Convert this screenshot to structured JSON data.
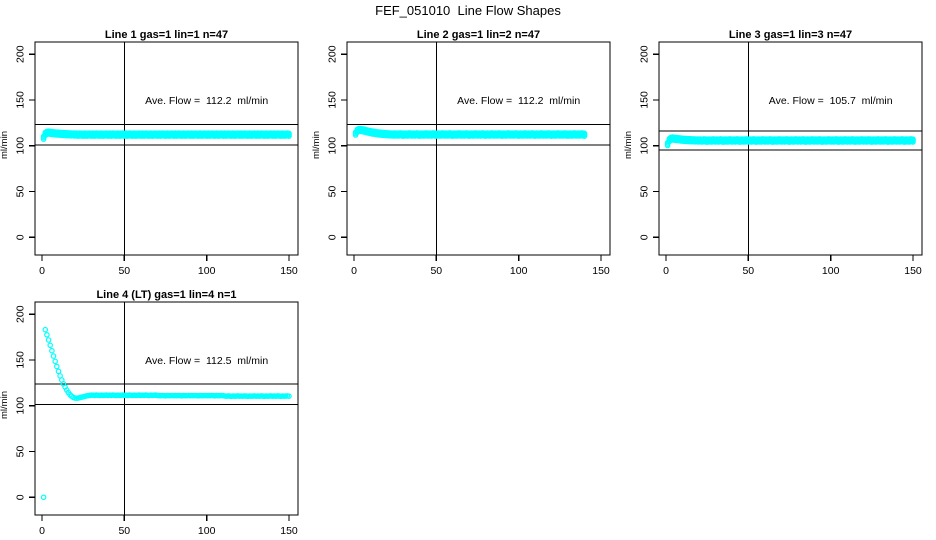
{
  "chart_data": {
    "type": "scatter",
    "figure_title": "FEF_051010  Line Flow Shapes",
    "shared": {
      "xlabel": "",
      "ylabel": "ml/min",
      "x_ticks": [
        0,
        50,
        100,
        150
      ],
      "y_ticks": [
        0,
        50,
        100,
        150,
        200
      ],
      "xlim": [
        -4,
        155
      ],
      "ylim": [
        -20,
        213
      ],
      "grid": false,
      "legend": "none",
      "vline_x": 50,
      "annotation_pos": {
        "x": 100,
        "y": 150
      },
      "x_start": 1,
      "x_step": 1,
      "point_color": "#00ffff",
      "axis_color": "#000000"
    },
    "panels": [
      {
        "title": "Line 1 gas=1 lin=1 n=47",
        "line_no": 1,
        "gas": 1,
        "lin": 1,
        "n_runs": 47,
        "ave_flow": 112.2,
        "ave_flow_label": "Ave. Flow =  112.2  ml/min",
        "ref_lines_y": [
          123.4,
          101.0
        ],
        "y": [
          108.8,
          112.9,
          114.1,
          114.3,
          114.1,
          113.9,
          113.7,
          113.5,
          113.3,
          113.2,
          113.0,
          112.9,
          112.8,
          112.7,
          112.6,
          112.5,
          112.5,
          112.4,
          112.4,
          112.3,
          112.3,
          112.1,
          112.4,
          112.2,
          112.0,
          112.3,
          112.1,
          112.2,
          112.4,
          112.1,
          112.3,
          112.1,
          112.4,
          112.2,
          112.0,
          112.3,
          112.1,
          112.2,
          112.4,
          112.1,
          112.3,
          112.1,
          112.4,
          112.2,
          112.0,
          112.3,
          112.1,
          112.2,
          112.4,
          112.1,
          112.3,
          112.1,
          112.4,
          112.2,
          112.0,
          112.3,
          112.1,
          112.2,
          112.4,
          112.1,
          112.3,
          112.1,
          112.4,
          112.2,
          112.0,
          112.3,
          112.1,
          112.2,
          112.4,
          112.1,
          112.3,
          112.1,
          112.4,
          112.2,
          112.0,
          112.3,
          112.1,
          112.2,
          112.4,
          112.1,
          112.3,
          112.1,
          112.4,
          112.2,
          112.0,
          112.3,
          112.1,
          112.2,
          112.4,
          112.1,
          112.3,
          112.1,
          112.4,
          112.2,
          112.0,
          112.3,
          112.1,
          112.2,
          112.4,
          112.1,
          112.3,
          112.1,
          112.4,
          112.2,
          112.0,
          112.3,
          112.1,
          112.2,
          112.4,
          112.1,
          112.3,
          112.1,
          112.4,
          112.2,
          112.0,
          112.3,
          112.1,
          112.2,
          112.4,
          112.1,
          112.3,
          112.1,
          112.4,
          112.2,
          112.0,
          112.3,
          112.1,
          112.2,
          112.4,
          112.1,
          112.3,
          112.1,
          112.4,
          112.2,
          112.0,
          112.3,
          112.1,
          112.2,
          112.4,
          112.1,
          112.3,
          112.1,
          112.4,
          112.2,
          112.0,
          112.3,
          112.1,
          112.2,
          112.4,
          112.1
        ]
      },
      {
        "title": "Line 2 gas=1 lin=2 n=47",
        "line_no": 2,
        "gas": 1,
        "lin": 2,
        "n_runs": 47,
        "ave_flow": 112.2,
        "ave_flow_label": "Ave. Flow =  112.2  ml/min",
        "ref_lines_y": [
          123.4,
          101.0
        ],
        "y": [
          113.2,
          116.3,
          117.2,
          117.3,
          117.0,
          116.6,
          116.1,
          115.7,
          115.3,
          114.9,
          114.5,
          114.2,
          113.9,
          113.6,
          113.4,
          113.2,
          113.0,
          112.9,
          112.7,
          112.6,
          112.5,
          112.4,
          112.4,
          112.3,
          112.3,
          112.4,
          112.2,
          112.5,
          112.3,
          112.1,
          112.4,
          112.2,
          112.3,
          112.5,
          112.2,
          112.4,
          112.2,
          112.5,
          112.3,
          112.1,
          112.4,
          112.2,
          112.3,
          112.5,
          112.2,
          112.4,
          112.2,
          112.5,
          112.3,
          112.1,
          112.4,
          112.2,
          112.3,
          112.5,
          112.2,
          112.4,
          112.2,
          112.5,
          112.3,
          112.1,
          112.4,
          112.2,
          112.3,
          112.5,
          112.2,
          112.4,
          112.2,
          112.5,
          112.3,
          112.1,
          112.4,
          112.2,
          112.3,
          112.5,
          112.2,
          112.4,
          112.2,
          112.5,
          112.3,
          112.1,
          112.4,
          112.2,
          112.3,
          112.5,
          112.2,
          112.4,
          112.2,
          112.5,
          112.3,
          112.1,
          112.4,
          112.2,
          112.3,
          112.5,
          112.2,
          112.4,
          112.2,
          112.5,
          112.3,
          112.1,
          112.4,
          112.2,
          112.3,
          112.5,
          112.2,
          112.4,
          112.2,
          112.5,
          112.3,
          112.1,
          112.4,
          112.2,
          112.3,
          112.5,
          112.2,
          112.4,
          112.2,
          112.5,
          112.3,
          112.1,
          112.4,
          112.2,
          112.3,
          112.5,
          112.2,
          112.4,
          112.2,
          112.5,
          112.3,
          112.1,
          112.4,
          112.2,
          112.3,
          112.5,
          112.2,
          112.4,
          112.2,
          112.5,
          112.3,
          112.1
        ]
      },
      {
        "title": "Line 3 gas=1 lin=3 n=47",
        "line_no": 3,
        "gas": 1,
        "lin": 3,
        "n_runs": 47,
        "ave_flow": 105.7,
        "ave_flow_label": "Ave. Flow =  105.7  ml/min",
        "ref_lines_y": [
          116.3,
          95.1
        ],
        "y": [
          101.8,
          106.1,
          107.6,
          107.9,
          107.7,
          107.4,
          107.2,
          107.0,
          106.8,
          106.6,
          106.5,
          106.3,
          106.2,
          106.1,
          106.0,
          105.9,
          105.9,
          105.8,
          105.8,
          105.7,
          105.8,
          105.6,
          105.9,
          105.7,
          105.5,
          105.8,
          105.6,
          105.7,
          105.9,
          105.6,
          105.8,
          105.6,
          105.9,
          105.7,
          105.5,
          105.8,
          105.6,
          105.7,
          105.9,
          105.6,
          105.8,
          105.6,
          105.9,
          105.7,
          105.5,
          105.8,
          105.6,
          105.7,
          105.9,
          105.6,
          105.8,
          105.6,
          105.9,
          105.7,
          105.5,
          105.8,
          105.6,
          105.7,
          105.9,
          105.6,
          105.8,
          105.6,
          105.9,
          105.7,
          105.5,
          105.8,
          105.6,
          105.7,
          105.9,
          105.6,
          105.8,
          105.6,
          105.9,
          105.7,
          105.5,
          105.8,
          105.6,
          105.7,
          105.9,
          105.6,
          105.8,
          105.6,
          105.9,
          105.7,
          105.5,
          105.8,
          105.6,
          105.7,
          105.9,
          105.6,
          105.8,
          105.6,
          105.9,
          105.7,
          105.5,
          105.8,
          105.6,
          105.7,
          105.9,
          105.6,
          105.8,
          105.6,
          105.9,
          105.7,
          105.5,
          105.8,
          105.6,
          105.7,
          105.9,
          105.6,
          105.8,
          105.6,
          105.9,
          105.7,
          105.5,
          105.8,
          105.6,
          105.7,
          105.9,
          105.6,
          105.8,
          105.6,
          105.9,
          105.7,
          105.5,
          105.8,
          105.6,
          105.7,
          105.9,
          105.6,
          105.8,
          105.6,
          105.9,
          105.7,
          105.5,
          105.8,
          105.6,
          105.7,
          105.9,
          105.6,
          105.8,
          105.6,
          105.9,
          105.7,
          105.5,
          105.8,
          105.6,
          105.7,
          105.9,
          105.6
        ]
      },
      {
        "title": "Line 4 (LT) gas=1 lin=4 n=1",
        "line_no": 4,
        "gas": 1,
        "lin": 4,
        "n_runs": 1,
        "ave_flow": 112.5,
        "ave_flow_label": "Ave. Flow =  112.5  ml/min",
        "ref_lines_y": [
          123.8,
          101.3
        ],
        "y": [
          0,
          183.0,
          177.5,
          171.8,
          166.0,
          160.1,
          154.2,
          148.4,
          142.8,
          137.5,
          132.6,
          128.1,
          124.0,
          120.4,
          117.2,
          114.5,
          112.2,
          110.4,
          109.1,
          108.4,
          108.2,
          108.4,
          108.8,
          109.3,
          109.8,
          110.3,
          110.7,
          111.0,
          111.3,
          111.5,
          111.5,
          111.3,
          111.6,
          111.4,
          111.2,
          111.5,
          111.3,
          111.4,
          111.6,
          111.3,
          111.5,
          111.3,
          111.6,
          111.4,
          111.2,
          111.5,
          111.3,
          111.4,
          111.6,
          111.3,
          111.5,
          111.3,
          111.6,
          111.4,
          111.2,
          111.5,
          111.3,
          111.4,
          111.6,
          111.3,
          111.5,
          111.3,
          111.6,
          111.4,
          111.2,
          111.5,
          111.3,
          111.4,
          111.6,
          111.3,
          111.1,
          110.9,
          111.2,
          111.0,
          110.8,
          111.1,
          110.9,
          111.0,
          111.2,
          110.9,
          111.1,
          110.9,
          111.2,
          111.0,
          110.8,
          111.1,
          110.9,
          111.0,
          111.2,
          110.9,
          111.1,
          110.9,
          111.2,
          111.0,
          110.8,
          111.1,
          110.9,
          111.0,
          111.2,
          110.9,
          111.1,
          110.9,
          111.2,
          111.0,
          110.8,
          111.1,
          110.9,
          111.0,
          111.2,
          110.9,
          110.6,
          110.4,
          110.7,
          110.5,
          110.3,
          110.6,
          110.4,
          110.5,
          110.7,
          110.4,
          110.6,
          110.4,
          110.7,
          110.5,
          110.3,
          110.6,
          110.4,
          110.5,
          110.7,
          110.4,
          110.6,
          110.4,
          110.7,
          110.5,
          110.3,
          110.6,
          110.4,
          110.5,
          110.7,
          110.4,
          110.6,
          110.4,
          110.7,
          110.5,
          110.3,
          110.6,
          110.4,
          110.5,
          110.7,
          110.4
        ]
      }
    ]
  }
}
